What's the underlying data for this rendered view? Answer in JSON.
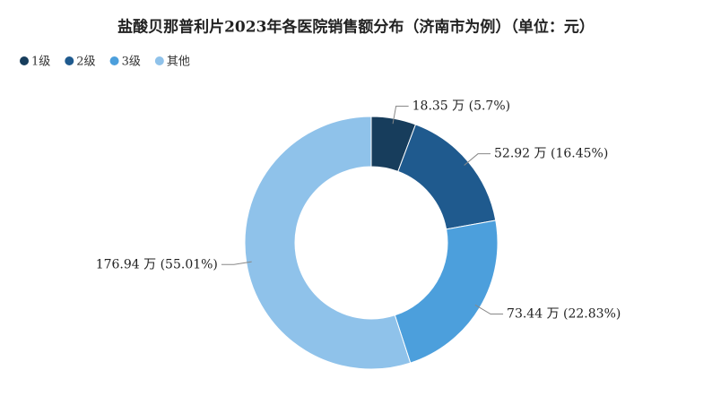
{
  "chart_data": {
    "type": "donut",
    "title": "盐酸贝那普利片2023年各医院销售额分布（济南市为例）（单位：元）",
    "categories": [
      "1级",
      "2级",
      "3级",
      "其他"
    ],
    "values": [
      18.35,
      52.92,
      73.44,
      176.94
    ],
    "value_labels": [
      "18.35 万 (5.7%)",
      "52.92 万 (16.45%)",
      "73.44 万 (22.83%)",
      "176.94 万 (55.01%)"
    ],
    "colors": [
      "#173d5c",
      "#1f5a8e",
      "#4c9fdc",
      "#8fc2ea"
    ],
    "legend": "top-left"
  }
}
